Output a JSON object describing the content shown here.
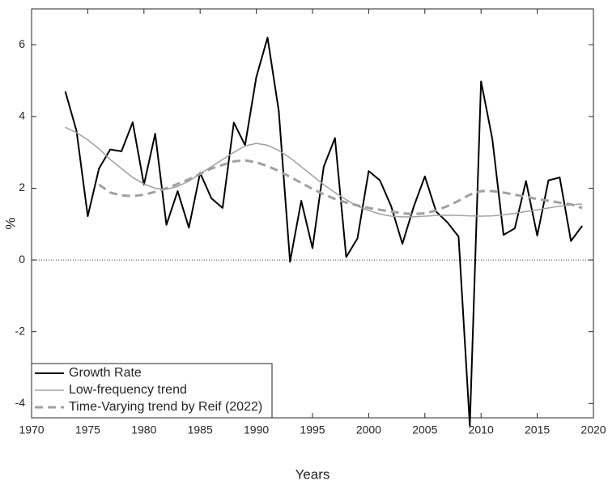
{
  "chart_data": {
    "type": "line",
    "xlabel": "Years",
    "ylabel": "%",
    "x": [
      1973,
      1974,
      1975,
      1976,
      1977,
      1978,
      1979,
      1980,
      1981,
      1982,
      1983,
      1984,
      1985,
      1986,
      1987,
      1988,
      1989,
      1990,
      1991,
      1992,
      1993,
      1994,
      1995,
      1996,
      1997,
      1998,
      1999,
      2000,
      2001,
      2002,
      2003,
      2004,
      2005,
      2006,
      2007,
      2008,
      2009,
      2010,
      2011,
      2012,
      2013,
      2014,
      2015,
      2016,
      2017,
      2018,
      2019
    ],
    "series": [
      {
        "name": "Growth Rate",
        "color": "#000000",
        "linestyle": "solid",
        "values": [
          4.7,
          3.6,
          1.22,
          2.55,
          3.08,
          3.03,
          3.84,
          2.1,
          3.52,
          0.98,
          1.92,
          0.9,
          2.43,
          1.72,
          1.45,
          3.83,
          3.2,
          5.1,
          6.2,
          4.15,
          -0.05,
          1.65,
          0.33,
          2.6,
          3.4,
          0.08,
          0.6,
          2.48,
          2.22,
          1.5,
          0.45,
          1.48,
          2.33,
          1.35,
          1.05,
          0.65,
          -4.62,
          4.98,
          3.38,
          0.7,
          0.88,
          2.2,
          0.68,
          2.22,
          2.3,
          0.53,
          0.95
        ]
      },
      {
        "name": "Low-frequency trend",
        "color": "#a0a0a0",
        "linestyle": "solid",
        "values": [
          3.7,
          3.55,
          3.35,
          3.1,
          2.8,
          2.55,
          2.3,
          2.12,
          2.0,
          1.97,
          2.05,
          2.2,
          2.4,
          2.6,
          2.8,
          3.0,
          3.18,
          3.25,
          3.2,
          3.05,
          2.85,
          2.6,
          2.35,
          2.1,
          1.88,
          1.68,
          1.5,
          1.38,
          1.28,
          1.22,
          1.2,
          1.2,
          1.22,
          1.24,
          1.25,
          1.24,
          1.23,
          1.22,
          1.23,
          1.26,
          1.3,
          1.35,
          1.4,
          1.45,
          1.5,
          1.54,
          1.56
        ]
      },
      {
        "name": "Time-Varying trend by Reif (2022)",
        "color": "#a0a0a0",
        "linestyle": "dashed",
        "values": [
          null,
          null,
          null,
          2.1,
          1.88,
          1.8,
          1.78,
          1.82,
          1.9,
          2.0,
          2.12,
          2.25,
          2.4,
          2.55,
          2.65,
          2.75,
          2.78,
          2.72,
          2.62,
          2.48,
          2.32,
          2.15,
          1.98,
          1.83,
          1.7,
          1.6,
          1.52,
          1.45,
          1.4,
          1.35,
          1.3,
          1.28,
          1.3,
          1.38,
          1.5,
          1.65,
          1.82,
          1.92,
          1.92,
          1.88,
          1.82,
          1.76,
          1.7,
          1.65,
          1.6,
          1.55,
          1.45
        ]
      }
    ],
    "xlim": [
      1970,
      2020
    ],
    "xticks": [
      1970,
      1975,
      1980,
      1985,
      1990,
      1995,
      2000,
      2005,
      2010,
      2015,
      2020
    ],
    "ylim": [
      -4.4,
      7
    ],
    "yticks": [
      -4,
      -2,
      0,
      2,
      4,
      6
    ],
    "reference_line": 0,
    "legend": "lower left",
    "grid": false
  }
}
